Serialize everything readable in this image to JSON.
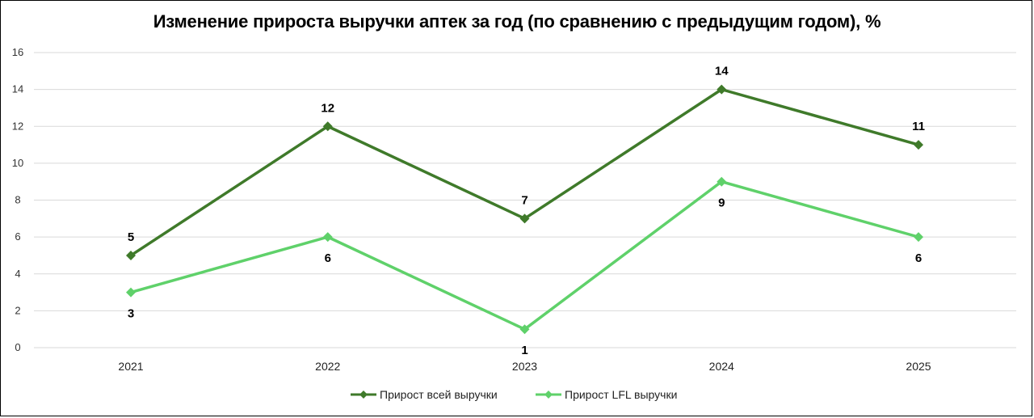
{
  "chart_data": {
    "type": "line",
    "title": "Изменение прироста выручки аптек за год (по сравнению с предыдущим годом), %",
    "x": [
      "2021",
      "2022",
      "2023",
      "2024",
      "2025"
    ],
    "ylim": [
      0,
      16
    ],
    "yticks": [
      0,
      2,
      4,
      6,
      8,
      10,
      12,
      14,
      16
    ],
    "grid": true,
    "legend_position": "bottom",
    "series": [
      {
        "name": "Прирост всей выручки",
        "values": [
          5,
          12,
          7,
          14,
          11
        ],
        "color": "#3f7a2a",
        "label_position": "above"
      },
      {
        "name": "Прирост LFL выручки",
        "values": [
          3,
          6,
          1,
          9,
          6
        ],
        "color": "#5fd16a",
        "label_position": "below"
      }
    ]
  }
}
